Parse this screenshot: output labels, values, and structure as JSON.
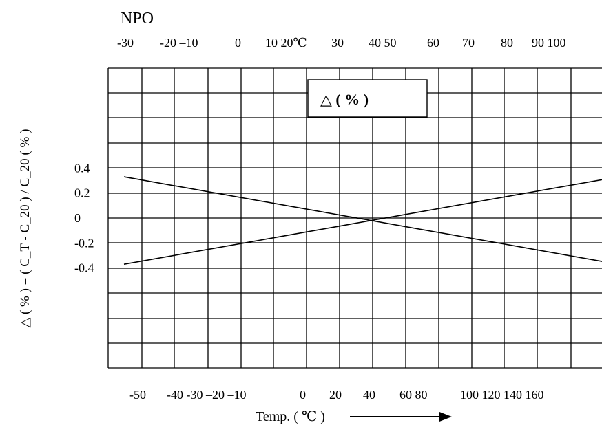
{
  "chart_data": {
    "type": "line",
    "title": "NPO",
    "legend_label": "△ ( % )",
    "ylabel": "△ ( % ) = ( C_T - C_20 ) / C_20 ( % )",
    "xlabel": "Temp. ( ℃ )",
    "top_axis_ticks": [
      "-30",
      "-20 –10",
      "0",
      "10 20℃",
      "30",
      "40 50",
      "60",
      "70",
      "80",
      "90 100"
    ],
    "bottom_axis_ticks": [
      "-50",
      "-40 -30 –20 –10",
      "0",
      "20",
      "40",
      "60 80",
      "100 120 140 160"
    ],
    "y_ticks": [
      {
        "label": "0.4",
        "value": 0.4
      },
      {
        "label": "0.2",
        "value": 0.2
      },
      {
        "label": "0",
        "value": 0
      },
      {
        "label": "-0.2",
        "value": -0.2
      },
      {
        "label": "-0.4",
        "value": -0.4
      }
    ],
    "ylim": [
      -1.2,
      1.2
    ],
    "grid": true,
    "series": [
      {
        "x": [
          -55,
          150
        ],
        "y": [
          0.33,
          -0.37
        ]
      },
      {
        "x": [
          -55,
          150
        ],
        "y": [
          -0.37,
          0.33
        ]
      }
    ]
  }
}
